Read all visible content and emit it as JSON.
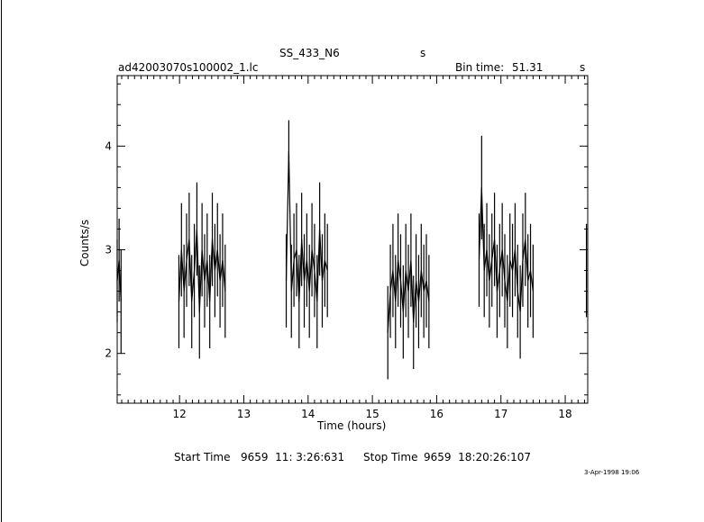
{
  "chart_data": {
    "type": "line",
    "title": "SS_433_N6",
    "title_suffix": "s",
    "filename": "ad42003070s100002_1.lc",
    "bin_time_label": "Bin time:",
    "bin_time_value": "51.31",
    "bin_time_unit": "s",
    "xlabel": "Time (hours)",
    "ylabel": "Counts/s",
    "xlim": [
      11.03,
      18.35
    ],
    "ylim": [
      1.52,
      4.68
    ],
    "x_ticks": [
      {
        "value": 12,
        "label": "12"
      },
      {
        "value": 13,
        "label": "13"
      },
      {
        "value": 14,
        "label": "14"
      },
      {
        "value": 15,
        "label": "15"
      },
      {
        "value": 16,
        "label": "16"
      },
      {
        "value": 17,
        "label": "17"
      },
      {
        "value": 18,
        "label": "18"
      }
    ],
    "y_ticks": [
      {
        "value": 2,
        "label": "2"
      },
      {
        "value": 3,
        "label": "3"
      },
      {
        "value": 4,
        "label": "4"
      }
    ],
    "segments": [
      {
        "name": "",
        "x": [
          11.03,
          11.06,
          11.09
        ],
        "y": [
          2.7,
          2.9,
          2.5
        ],
        "err": [
          0.4,
          0.4,
          0.5
        ]
      },
      {
        "name": "",
        "x": [
          11.99,
          12.03,
          12.07,
          12.11,
          12.15,
          12.19,
          12.23,
          12.27,
          12.31,
          12.35,
          12.39,
          12.43,
          12.47,
          12.51,
          12.55,
          12.59,
          12.63,
          12.67,
          12.71
        ],
        "y": [
          2.5,
          3.0,
          2.6,
          2.9,
          3.1,
          2.5,
          2.8,
          3.2,
          2.4,
          3.0,
          2.7,
          2.9,
          2.5,
          3.1,
          2.8,
          3.0,
          2.7,
          2.9,
          2.6
        ],
        "err": [
          0.45,
          0.45,
          0.45,
          0.45,
          0.45,
          0.45,
          0.45,
          0.45,
          0.45,
          0.45,
          0.45,
          0.45,
          0.45,
          0.45,
          0.45,
          0.45,
          0.45,
          0.45,
          0.45
        ]
      },
      {
        "name": "",
        "x": [
          13.66,
          13.7,
          13.74,
          13.78,
          13.82,
          13.86,
          13.9,
          13.94,
          13.98,
          14.02,
          14.06,
          14.1,
          14.14,
          14.18,
          14.22,
          14.26,
          14.3
        ],
        "y": [
          2.7,
          3.95,
          2.6,
          2.9,
          3.0,
          2.5,
          3.1,
          2.7,
          2.9,
          2.6,
          3.0,
          2.8,
          2.5,
          3.2,
          2.7,
          2.9,
          2.8
        ],
        "err": [
          0.45,
          0.3,
          0.45,
          0.45,
          0.45,
          0.45,
          0.45,
          0.45,
          0.45,
          0.45,
          0.45,
          0.45,
          0.45,
          0.45,
          0.45,
          0.45,
          0.45
        ]
      },
      {
        "name": "",
        "x": [
          15.24,
          15.28,
          15.32,
          15.36,
          15.4,
          15.44,
          15.48,
          15.52,
          15.56,
          15.6,
          15.64,
          15.68,
          15.72,
          15.76,
          15.8,
          15.84,
          15.88
        ],
        "y": [
          2.2,
          2.6,
          2.8,
          2.5,
          2.9,
          2.7,
          2.4,
          2.8,
          2.6,
          2.9,
          2.3,
          2.7,
          2.5,
          2.8,
          2.6,
          2.7,
          2.5
        ],
        "err": [
          0.45,
          0.45,
          0.45,
          0.45,
          0.45,
          0.45,
          0.45,
          0.45,
          0.45,
          0.45,
          0.45,
          0.45,
          0.45,
          0.45,
          0.45,
          0.45,
          0.45
        ]
      },
      {
        "name": "",
        "x": [
          16.66,
          16.7,
          16.74,
          16.78,
          16.82,
          16.86,
          16.9,
          16.94,
          16.98,
          17.02,
          17.06,
          17.1,
          17.14,
          17.18,
          17.22,
          17.26,
          17.3,
          17.34,
          17.38,
          17.42,
          17.46,
          17.5
        ],
        "y": [
          2.9,
          3.6,
          2.8,
          3.0,
          2.7,
          2.9,
          3.1,
          2.6,
          2.8,
          3.0,
          2.7,
          2.5,
          2.9,
          2.8,
          3.0,
          2.6,
          2.4,
          2.9,
          3.1,
          2.7,
          2.8,
          2.6
        ],
        "err": [
          0.45,
          0.5,
          0.45,
          0.45,
          0.45,
          0.45,
          0.45,
          0.45,
          0.45,
          0.45,
          0.45,
          0.45,
          0.45,
          0.45,
          0.45,
          0.45,
          0.45,
          0.45,
          0.45,
          0.45,
          0.45,
          0.45
        ]
      },
      {
        "name": "",
        "x": [
          18.33
        ],
        "y": [
          2.8
        ],
        "err": [
          0.45
        ]
      }
    ],
    "start_label": "Start Time",
    "start_value": "9659  11: 3:26:631",
    "stop_label": "Stop Time",
    "stop_value": "9659  18:20:26:107",
    "timestamp": "3-Apr-1998 19:06",
    "grid": false
  }
}
